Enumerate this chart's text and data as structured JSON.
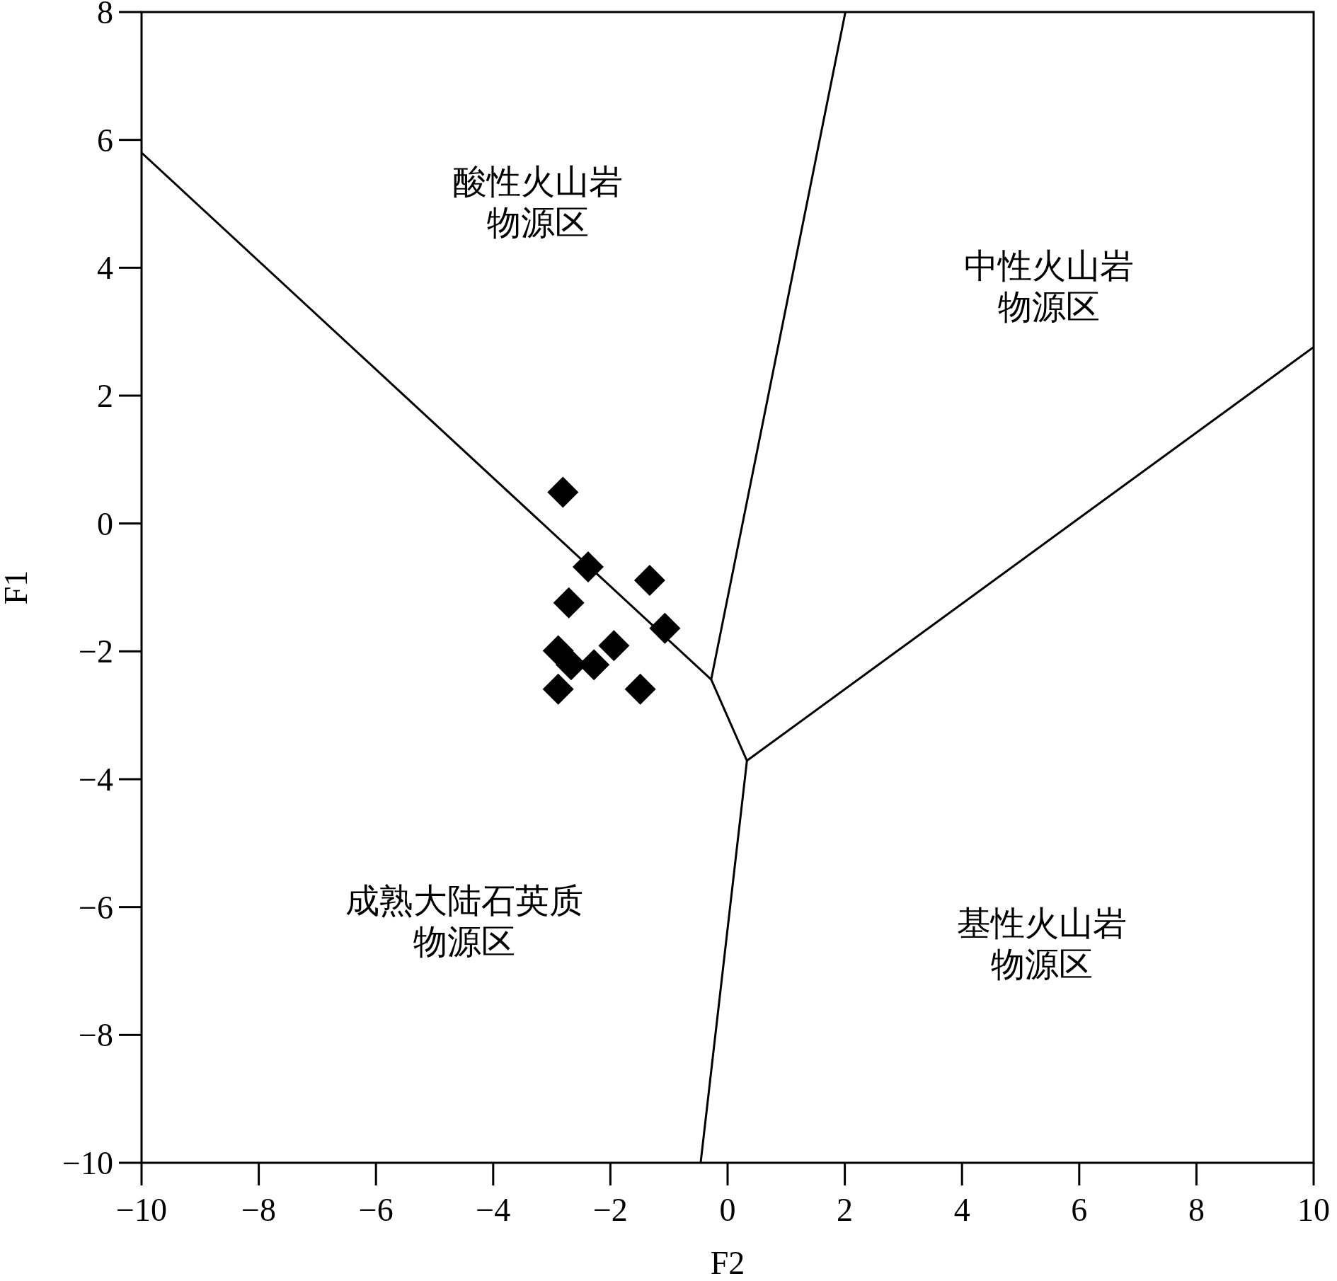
{
  "chart_data": {
    "type": "scatter",
    "xlabel": "F2",
    "ylabel": "F1",
    "xlim": [
      -10,
      10
    ],
    "ylim": [
      -10,
      8
    ],
    "xticks": [
      {
        "value": -10,
        "label": "−10"
      },
      {
        "value": -8,
        "label": "−8"
      },
      {
        "value": -6,
        "label": "−6"
      },
      {
        "value": -4,
        "label": "−4"
      },
      {
        "value": -2,
        "label": "−2"
      },
      0,
      2,
      4,
      6,
      8,
      10
    ],
    "yticks": [
      {
        "value": -10,
        "label": "−10"
      },
      {
        "value": -8,
        "label": "−8"
      },
      {
        "value": -6,
        "label": "−6"
      },
      {
        "value": -4,
        "label": "−4"
      },
      {
        "value": -2,
        "label": "−2"
      },
      0,
      2,
      4,
      6,
      8
    ],
    "series": [
      {
        "type": "line",
        "color": "#000000",
        "x": [
          -10,
          -0.28,
          0.33,
          10
        ],
        "values": [
          5.8,
          -2.44,
          -3.71,
          2.76
        ]
      },
      {
        "type": "line",
        "color": "#000000",
        "x": [
          -0.28,
          2.01
        ],
        "values": [
          -2.44,
          8
        ]
      },
      {
        "type": "line",
        "color": "#000000",
        "x": [
          0.33,
          -0.46
        ],
        "values": [
          -3.71,
          -10
        ]
      },
      {
        "color": "#000000",
        "marker": "diamond",
        "x": [
          -2.81,
          -2.38,
          -1.33,
          -2.71,
          -1.07,
          -2.89,
          -1.94,
          -2.67,
          -2.28,
          -2.89,
          -1.49
        ],
        "values": [
          0.49,
          -0.68,
          -0.89,
          -1.24,
          -1.64,
          -1.99,
          -1.91,
          -2.21,
          -2.21,
          -2.59,
          -2.59
        ]
      }
    ],
    "annotations": [
      "酸性火山岩物源区",
      "中性火山岩物源区",
      "成熟大陆石英质物源区",
      "基性火山岩物源区"
    ]
  }
}
